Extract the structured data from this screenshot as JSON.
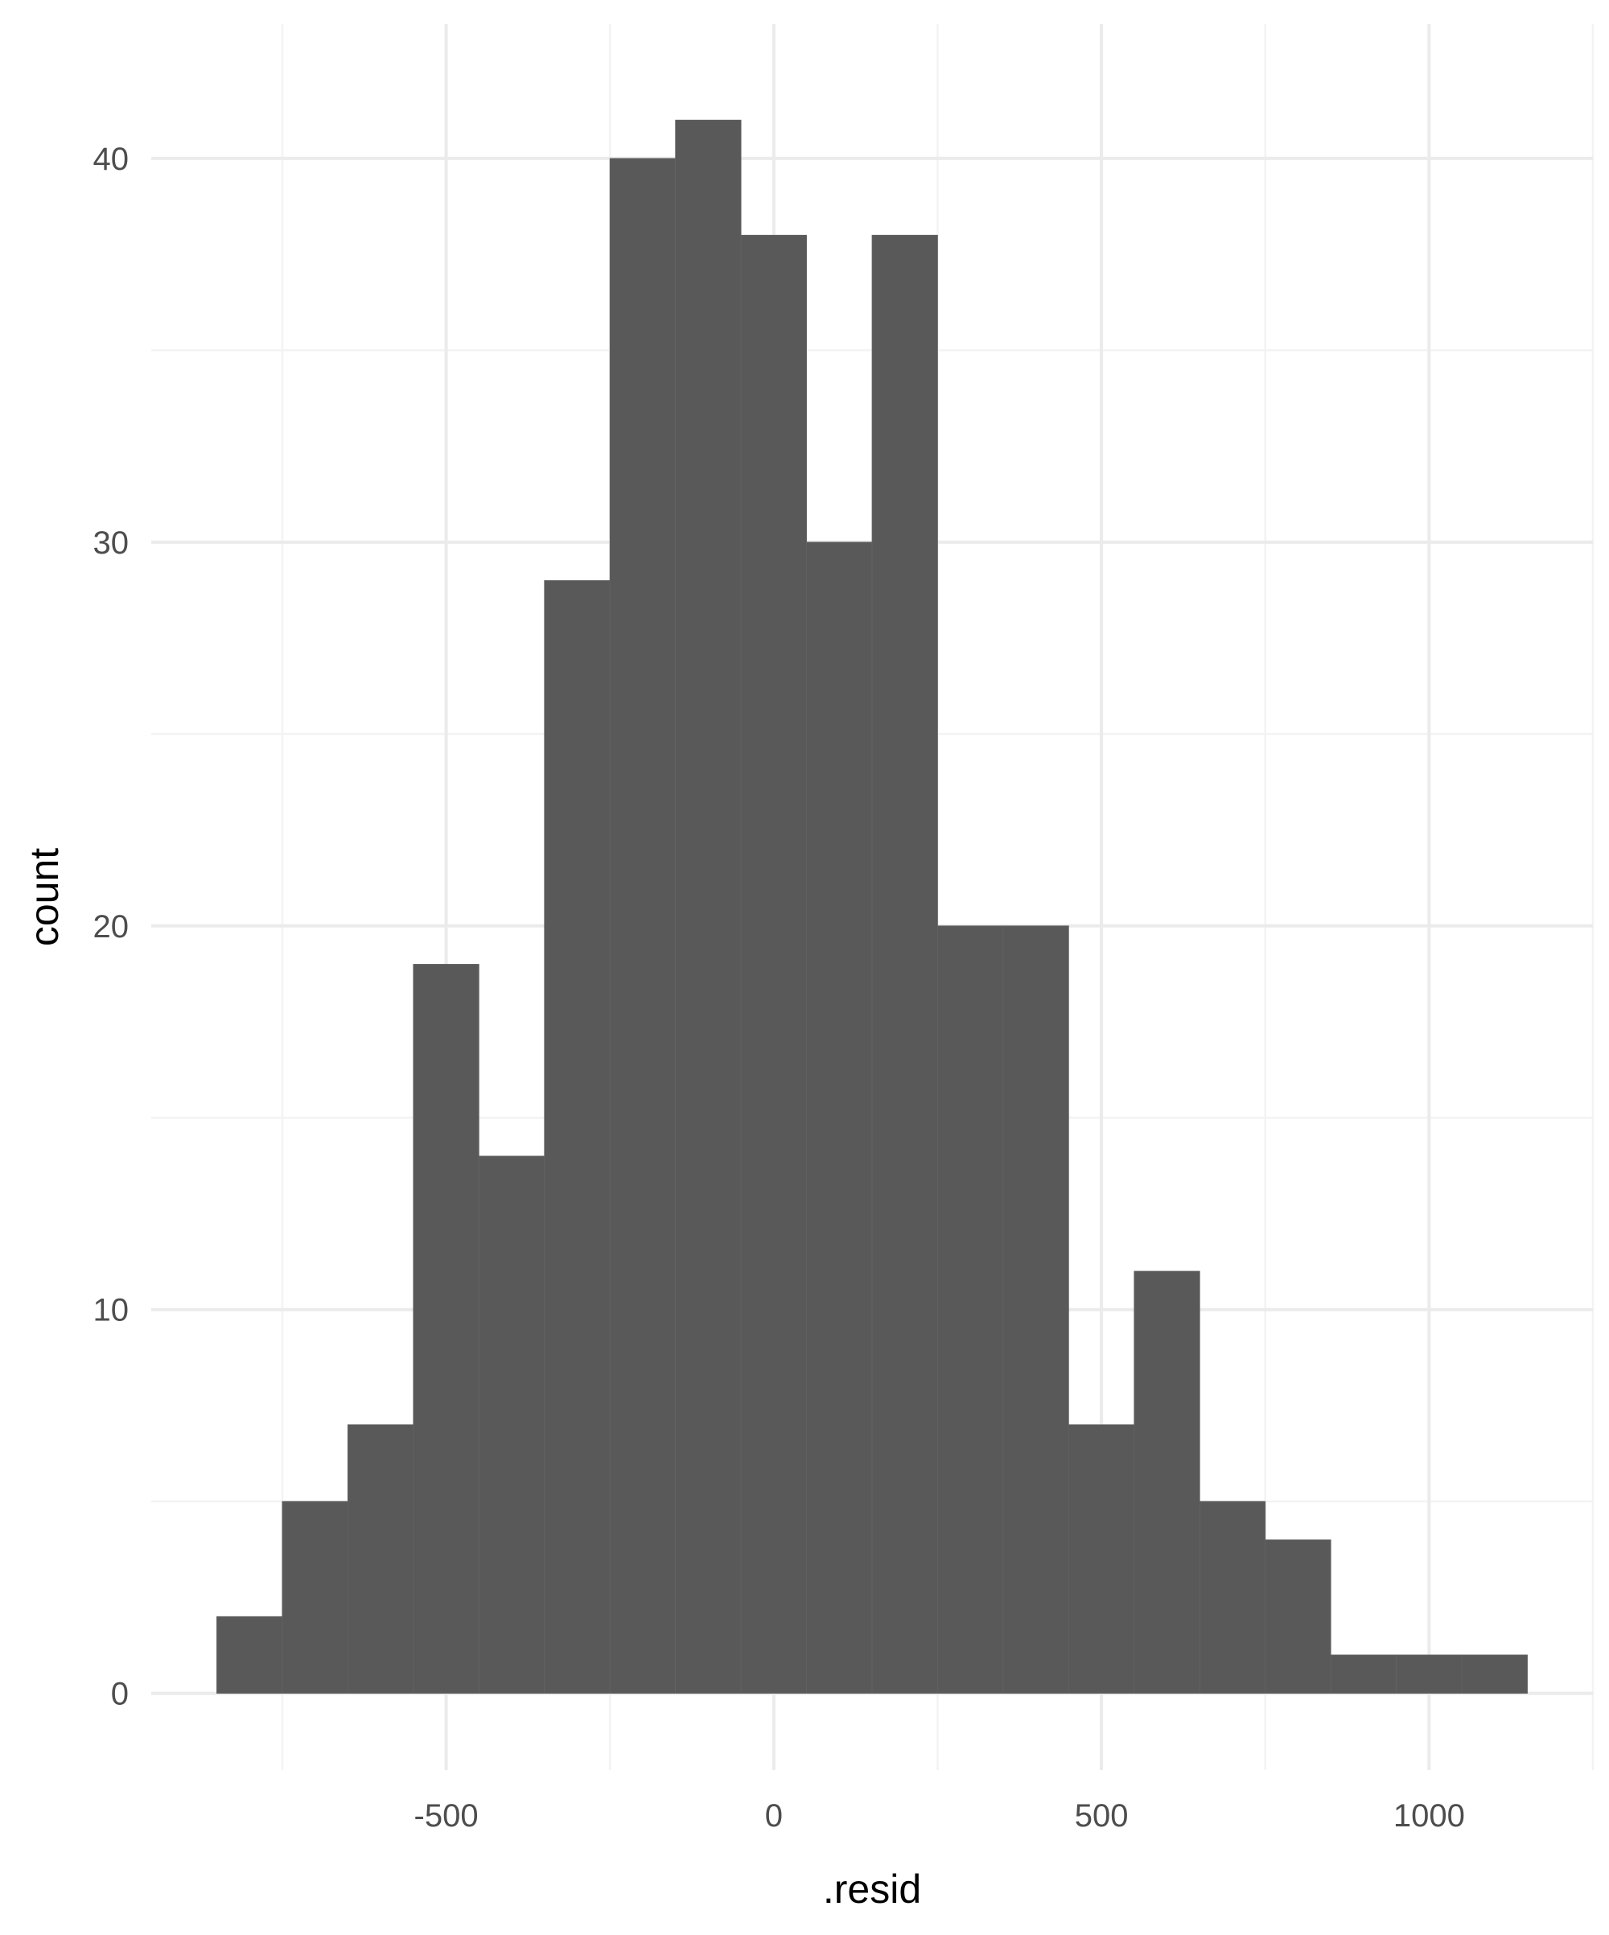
{
  "chart_data": {
    "type": "bar",
    "subtype": "histogram",
    "title": "",
    "xlabel": ".resid",
    "ylabel": "count",
    "xlim": [
      -950,
      1250
    ],
    "ylim": [
      -2.0,
      43.5
    ],
    "x_ticks": [
      -500,
      0,
      500,
      1000
    ],
    "x_minor_ticks": [
      -750,
      -250,
      250,
      750,
      1250
    ],
    "y_ticks": [
      0,
      10,
      20,
      30,
      40
    ],
    "y_minor_ticks": [
      5,
      15,
      25,
      35
    ],
    "x_tick_labels": [
      "-500",
      "0",
      "500",
      "1000"
    ],
    "y_tick_labels": [
      "0",
      "10",
      "20",
      "30",
      "40"
    ],
    "bin_width": 100,
    "bin_centers": [
      -800,
      -700,
      -600,
      -500,
      -400,
      -300,
      -200,
      -100,
      0,
      100,
      200,
      300,
      400,
      500,
      600,
      700,
      800,
      900,
      1000,
      1100
    ],
    "values": [
      2,
      5,
      7,
      19,
      14,
      29,
      40,
      41,
      38,
      30,
      38,
      20,
      20,
      7,
      11,
      5,
      4,
      1,
      1,
      1
    ],
    "grid": true,
    "theme": "minimal",
    "colors": {
      "bar_fill": "#595959",
      "grid_major": "#ebebeb",
      "grid_minor": "#f3f3f3",
      "tick_text": "#4d4d4d",
      "title_text": "#000000"
    }
  }
}
